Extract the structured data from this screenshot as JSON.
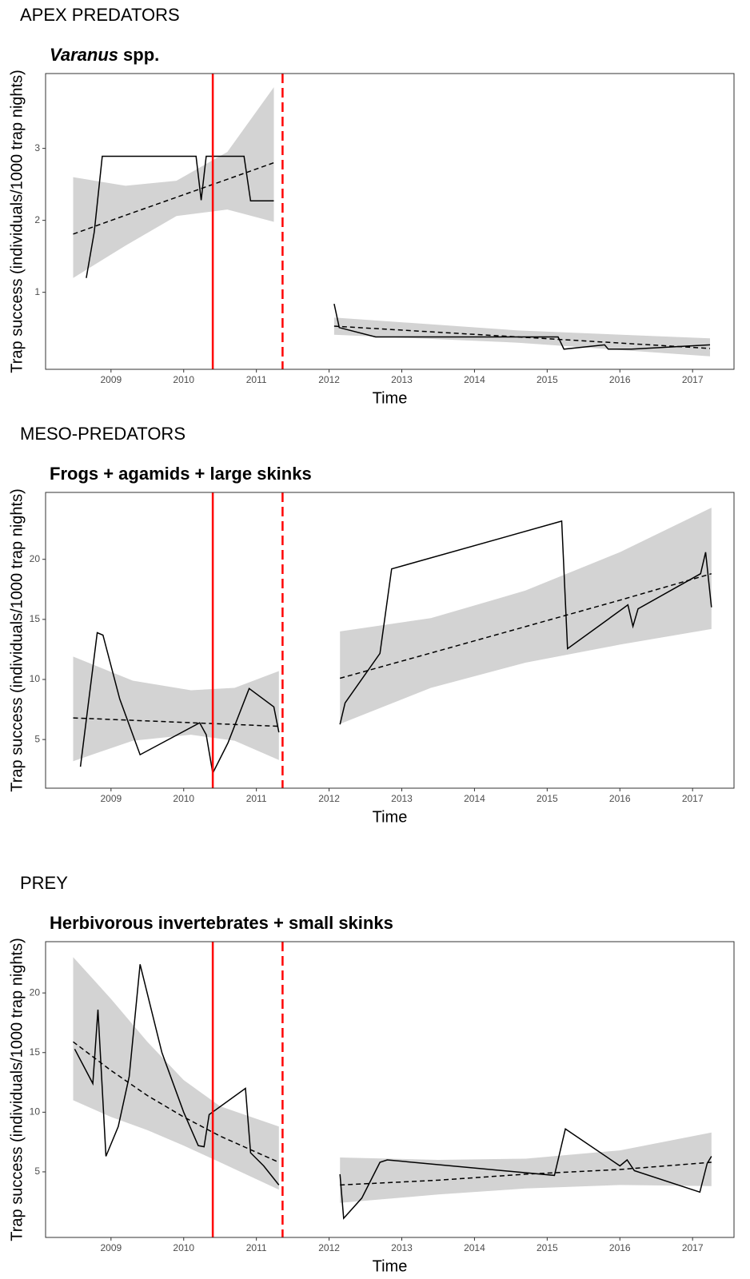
{
  "chart_data": [
    {
      "type": "line",
      "section": "APEX PREDATORS",
      "title_italic": "Varanus",
      "title": "spp.",
      "xlabel": "Time",
      "ylabel": "Trap success (individuals/1000 trap nights)",
      "xlim": [
        2008.1,
        2017.57
      ],
      "xticks": [
        2009,
        2010,
        2011,
        2012,
        2013,
        2014,
        2015,
        2016,
        2017
      ],
      "ylim": [
        -0.07,
        4.04
      ],
      "yticks": [
        1,
        2,
        3
      ],
      "line_color": "#000000",
      "band_color": "#d3d3d3",
      "vline_color": "#ff0000",
      "observed": {
        "x": [
          2008.66,
          2008.77,
          2008.88,
          2010.17,
          2010.24,
          2010.31,
          2010.83,
          2010.92,
          2011.24,
          null,
          2012.07,
          2012.14,
          2012.64,
          2015.15,
          2015.23,
          2015.79,
          2015.84,
          2016.16,
          2017.24
        ],
        "y": [
          1.2,
          1.84,
          2.89,
          2.89,
          2.28,
          2.89,
          2.89,
          2.27,
          2.27,
          null,
          0.84,
          0.51,
          0.38,
          0.38,
          0.21,
          0.27,
          0.21,
          0.21,
          0.27
        ]
      },
      "trend": {
        "x": [
          2008.48,
          2009.2,
          2009.9,
          2010.6,
          2011.24,
          null,
          2012.07,
          2014.6,
          2017.24
        ],
        "y": [
          1.81,
          2.07,
          2.32,
          2.57,
          2.8,
          null,
          0.53,
          0.38,
          0.22
        ],
        "upper": [
          2.6,
          2.48,
          2.55,
          2.95,
          3.85,
          null,
          0.65,
          0.47,
          0.36
        ],
        "lower": [
          1.2,
          1.65,
          2.06,
          2.15,
          1.98,
          null,
          0.41,
          0.3,
          0.11
        ]
      },
      "vlines": [
        {
          "x": 2010.4,
          "dashed": false
        },
        {
          "x": 2011.36,
          "dashed": true
        }
      ]
    },
    {
      "type": "line",
      "section": "MESO-PREDATORS",
      "title": "Frogs + agamids + large skinks",
      "xlabel": "Time",
      "ylabel": "Trap success (individuals/1000 trap nights)",
      "xlim": [
        2008.1,
        2017.57
      ],
      "xticks": [
        2009,
        2010,
        2011,
        2012,
        2013,
        2014,
        2015,
        2016,
        2017
      ],
      "ylim": [
        0.95,
        25.57
      ],
      "yticks": [
        5,
        10,
        15,
        20
      ],
      "line_color": "#000000",
      "band_color": "#d3d3d3",
      "vline_color": "#ff0000",
      "observed": {
        "x": [
          2008.58,
          2008.81,
          2008.89,
          2009.12,
          2009.4,
          2010.22,
          2010.31,
          2010.4,
          2010.61,
          2010.9,
          2011.24,
          2011.31,
          null,
          2012.15,
          2012.22,
          2012.7,
          2012.86,
          2015.2,
          2015.28,
          2016.11,
          2016.18,
          2016.25,
          2017.11,
          2017.18,
          2017.26
        ],
        "y": [
          2.74,
          13.89,
          13.69,
          8.38,
          3.74,
          6.39,
          5.4,
          2.21,
          4.73,
          9.25,
          7.72,
          5.6,
          null,
          6.26,
          8.05,
          12.17,
          19.2,
          23.18,
          12.56,
          16.21,
          14.42,
          15.88,
          18.8,
          20.59,
          16.01
        ]
      },
      "trend": {
        "x": [
          2008.48,
          2009.3,
          2010.1,
          2010.7,
          2011.31,
          null,
          2012.15,
          2013.4,
          2014.7,
          2016.0,
          2017.26
        ],
        "y": [
          6.8,
          6.6,
          6.4,
          6.25,
          6.1,
          null,
          10.1,
          12.2,
          14.4,
          16.6,
          18.8
        ],
        "upper": [
          11.9,
          9.9,
          9.1,
          9.3,
          10.7,
          null,
          14.0,
          15.1,
          17.4,
          20.6,
          24.3
        ],
        "lower": [
          3.2,
          4.9,
          5.4,
          4.9,
          3.3,
          null,
          6.3,
          9.3,
          11.4,
          12.9,
          14.2
        ]
      },
      "vlines": [
        {
          "x": 2010.4,
          "dashed": false
        },
        {
          "x": 2011.36,
          "dashed": true
        }
      ]
    },
    {
      "type": "line",
      "section": "PREY",
      "title": "Herbivorous invertebrates + small skinks",
      "xlabel": "Time",
      "ylabel": "Trap success (individuals/1000 trap nights)",
      "xlim": [
        2008.1,
        2017.57
      ],
      "xticks": [
        2009,
        2010,
        2011,
        2012,
        2013,
        2014,
        2015,
        2016,
        2017
      ],
      "ylim": [
        -0.5,
        24.3
      ],
      "yticks": [
        5,
        10,
        15,
        20
      ],
      "line_color": "#000000",
      "band_color": "#d3d3d3",
      "vline_color": "#ff0000",
      "observed": {
        "x": [
          2008.5,
          2008.75,
          2008.82,
          2008.93,
          2009.1,
          2009.25,
          2009.4,
          2009.7,
          2010.0,
          2010.2,
          2010.28,
          2010.35,
          2010.85,
          2010.92,
          2011.1,
          2011.31,
          null,
          2012.15,
          2012.2,
          2012.45,
          2012.7,
          2012.8,
          2015.1,
          2015.25,
          2016.0,
          2016.1,
          2016.2,
          2017.1,
          2017.2,
          2017.26
        ],
        "y": [
          15.3,
          12.4,
          18.6,
          6.3,
          8.8,
          13,
          22.4,
          15,
          10,
          7.2,
          7.1,
          9.8,
          12.0,
          6.6,
          5.5,
          3.9,
          null,
          4.8,
          1.1,
          2.8,
          5.8,
          6.0,
          4.7,
          8.6,
          5.5,
          6.0,
          5.1,
          3.3,
          5.7,
          6.3
        ]
      },
      "trend": {
        "x": [
          2008.48,
          2009.0,
          2009.5,
          2010.0,
          2010.5,
          2011.31,
          null,
          2012.15,
          2013.5,
          2014.7,
          2016.0,
          2017.26
        ],
        "y": [
          15.9,
          13.5,
          11.4,
          9.6,
          8.0,
          5.8,
          null,
          3.9,
          4.3,
          4.8,
          5.2,
          5.8
        ],
        "upper": [
          23.0,
          19.5,
          15.9,
          12.7,
          10.5,
          8.8,
          null,
          6.2,
          6.0,
          6.1,
          6.8,
          8.3
        ],
        "lower": [
          11.0,
          9.6,
          8.5,
          7.2,
          5.8,
          3.5,
          null,
          2.4,
          3.1,
          3.6,
          3.9,
          3.8
        ]
      },
      "vlines": [
        {
          "x": 2010.4,
          "dashed": false
        },
        {
          "x": 2011.36,
          "dashed": true
        }
      ]
    }
  ]
}
